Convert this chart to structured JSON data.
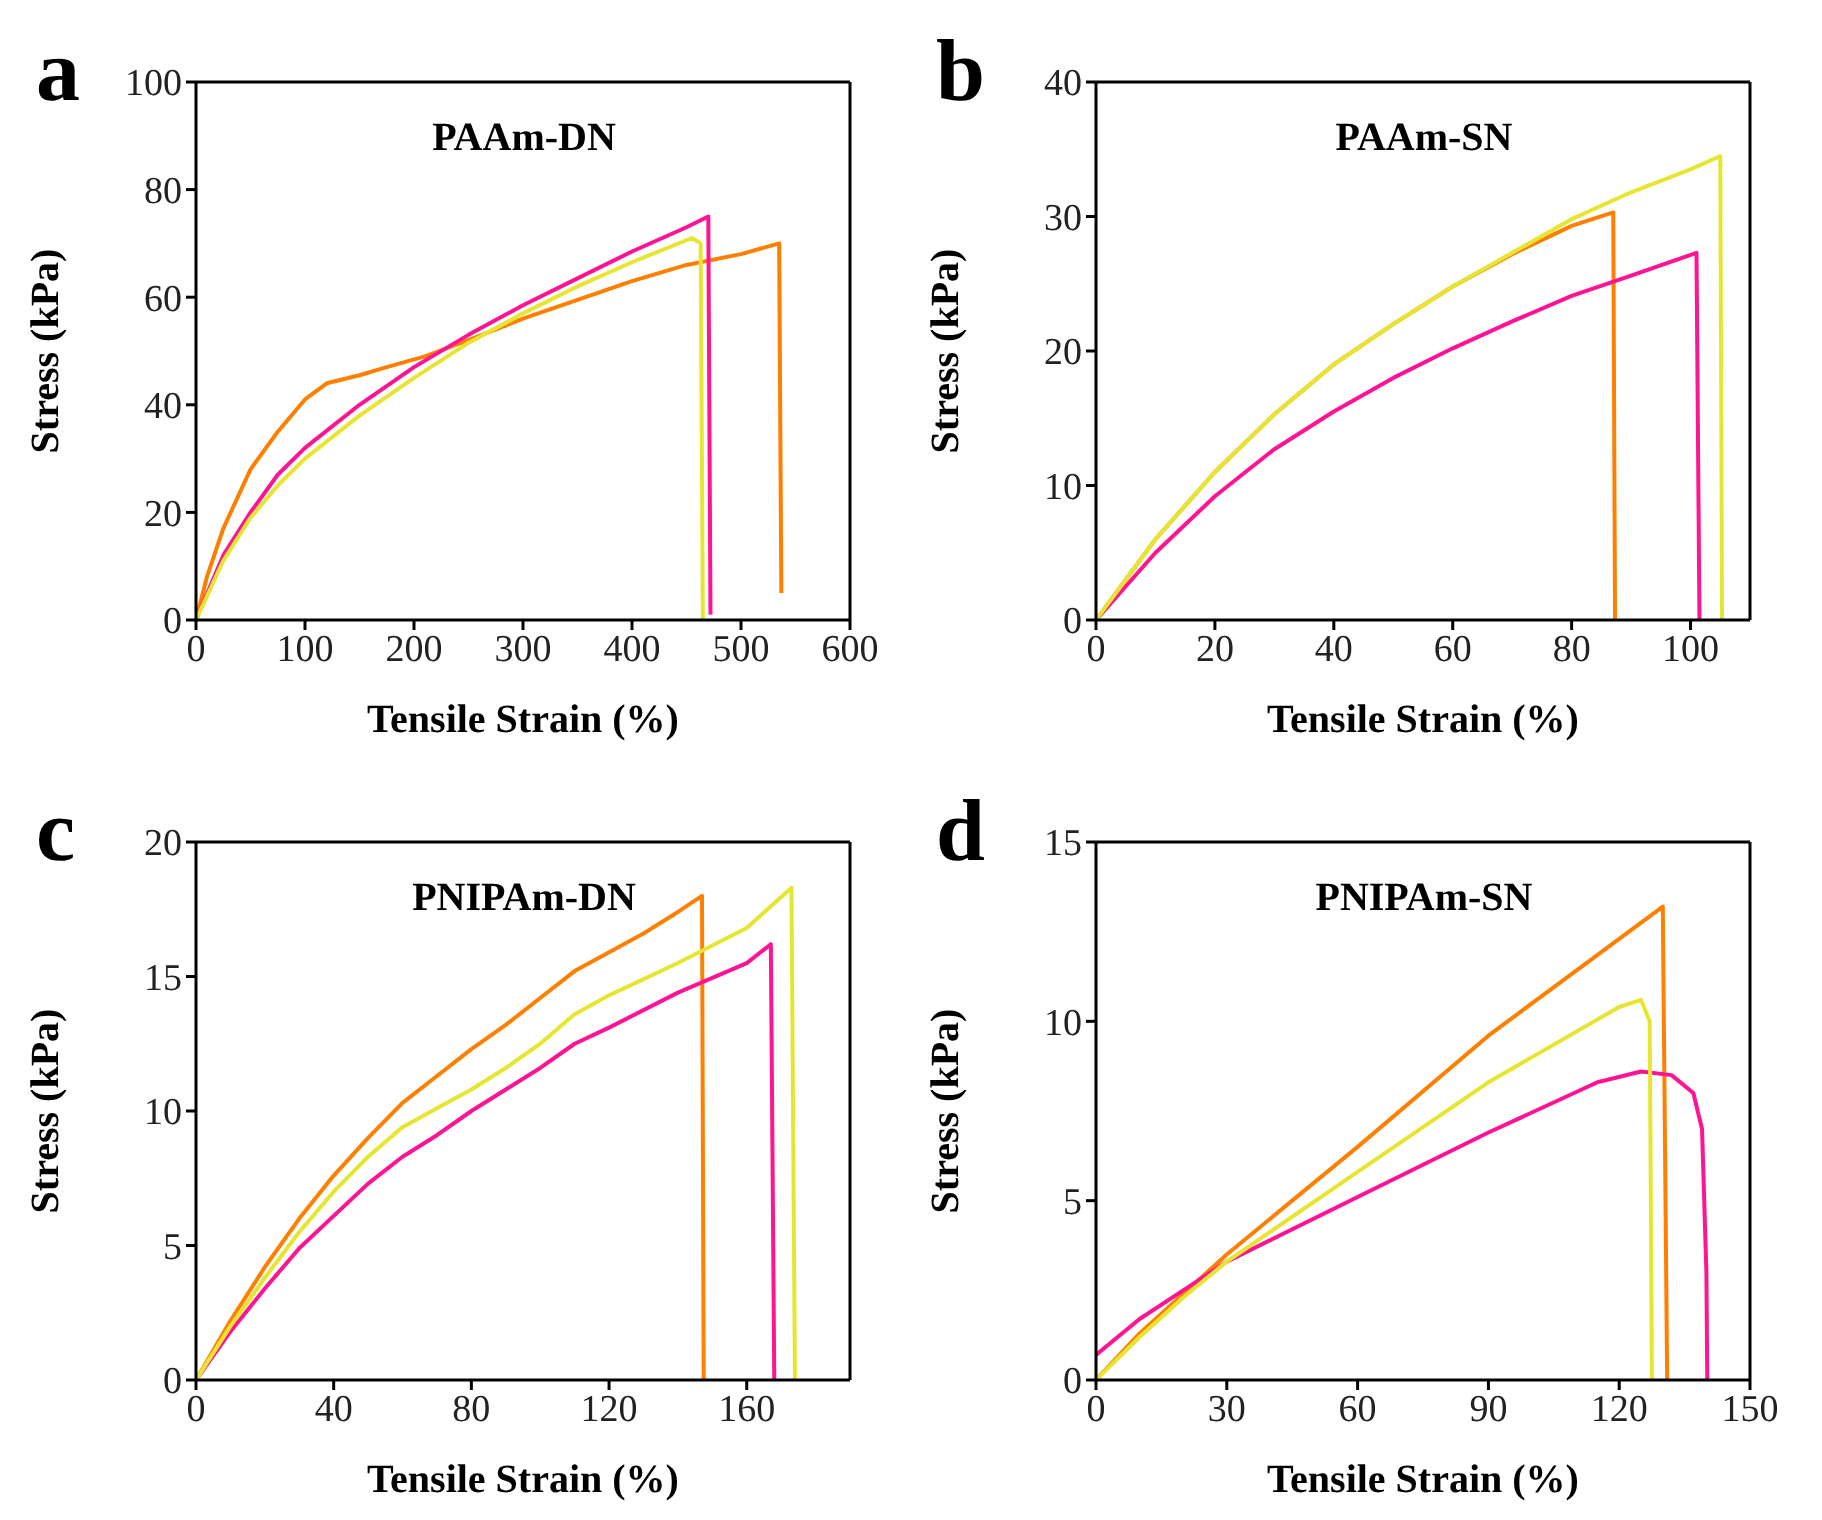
{
  "chart_data": [
    {
      "type": "line",
      "title": "PAAm-DN",
      "xlabel": "Tensile Strain (%)",
      "ylabel": "Stress (kPa)",
      "annotations": [
        "a"
      ],
      "xlim": [
        0,
        600
      ],
      "xticks": [
        0,
        100,
        200,
        300,
        400,
        500,
        600
      ],
      "ylim": [
        0,
        100
      ],
      "yticks": [
        0,
        20,
        40,
        60,
        80,
        100
      ],
      "grid": false,
      "legend": false,
      "marker": "none",
      "line_style": "solid",
      "series": [
        {
          "color": "#ff8000",
          "x": [
            0,
            10,
            25,
            50,
            75,
            100,
            120,
            150,
            175,
            210,
            250,
            300,
            350,
            400,
            450,
            500,
            535,
            537
          ],
          "values": [
            0,
            8,
            17,
            28,
            35,
            41,
            44,
            45.5,
            47,
            49,
            52,
            56,
            59.5,
            63,
            66,
            68,
            70,
            5
          ]
        },
        {
          "color": "#ff1493",
          "x": [
            0,
            25,
            50,
            75,
            100,
            150,
            200,
            250,
            300,
            350,
            400,
            450,
            470,
            472
          ],
          "values": [
            0,
            12,
            20,
            27,
            32,
            40,
            47,
            53,
            58.5,
            63.5,
            68.5,
            73,
            75,
            1
          ]
        },
        {
          "color": "#e6e632",
          "x": [
            0,
            25,
            50,
            75,
            100,
            150,
            200,
            250,
            300,
            350,
            400,
            455,
            463,
            465
          ],
          "values": [
            0,
            11,
            19,
            25,
            30,
            38,
            45,
            51.5,
            57,
            62,
            66.5,
            71,
            70,
            0
          ]
        }
      ]
    },
    {
      "type": "line",
      "title": "PAAm-SN",
      "xlabel": "Tensile Strain (%)",
      "ylabel": "Stress (kPa)",
      "annotations": [
        "b"
      ],
      "xlim": [
        0,
        110
      ],
      "xticks": [
        0,
        20,
        40,
        60,
        80,
        100
      ],
      "ylim": [
        0,
        40
      ],
      "yticks": [
        0,
        10,
        20,
        30,
        40
      ],
      "grid": false,
      "legend": false,
      "marker": "none",
      "line_style": "solid",
      "series": [
        {
          "color": "#ff8000",
          "x": [
            0,
            10,
            20,
            30,
            40,
            50,
            60,
            70,
            80,
            87,
            87.3
          ],
          "values": [
            0,
            6,
            11,
            15.3,
            19,
            22,
            24.8,
            27.2,
            29.3,
            30.3,
            0
          ]
        },
        {
          "color": "#ff1493",
          "x": [
            0,
            10,
            20,
            30,
            40,
            50,
            60,
            70,
            80,
            90,
            101,
            101.5
          ],
          "values": [
            0,
            5,
            9.2,
            12.7,
            15.5,
            18,
            20.2,
            22.2,
            24.1,
            25.6,
            27.3,
            0
          ]
        },
        {
          "color": "#e6e632",
          "x": [
            0,
            10,
            20,
            30,
            40,
            50,
            60,
            70,
            80,
            90,
            100,
            105,
            105.3
          ],
          "values": [
            0,
            6,
            11,
            15.3,
            19,
            22,
            24.8,
            27.3,
            29.8,
            31.8,
            33.5,
            34.5,
            0
          ]
        }
      ]
    },
    {
      "type": "line",
      "title": "PNIPAm-DN",
      "xlabel": "Tensile Strain (%)",
      "ylabel": "Stress (kPa)",
      "annotations": [
        "c"
      ],
      "xlim": [
        0,
        190
      ],
      "xticks": [
        0,
        40,
        80,
        120,
        160
      ],
      "ylim": [
        0,
        20
      ],
      "yticks": [
        0,
        5,
        10,
        15,
        20
      ],
      "grid": false,
      "legend": false,
      "marker": "none",
      "line_style": "solid",
      "series": [
        {
          "color": "#ff8000",
          "x": [
            0,
            10,
            20,
            30,
            40,
            50,
            60,
            70,
            80,
            90,
            100,
            110,
            120,
            130,
            140,
            147,
            147.5
          ],
          "values": [
            0,
            2.2,
            4.2,
            6,
            7.6,
            9,
            10.3,
            11.3,
            12.3,
            13.2,
            14.2,
            15.2,
            15.9,
            16.6,
            17.4,
            18,
            0
          ]
        },
        {
          "color": "#ff1493",
          "x": [
            0,
            10,
            20,
            30,
            40,
            50,
            60,
            70,
            80,
            90,
            100,
            110,
            120,
            140,
            160,
            167,
            168
          ],
          "values": [
            0,
            1.8,
            3.4,
            4.9,
            6.1,
            7.3,
            8.3,
            9.1,
            10,
            10.8,
            11.6,
            12.5,
            13.1,
            14.4,
            15.5,
            16.2,
            0
          ]
        },
        {
          "color": "#e6e632",
          "x": [
            0,
            10,
            20,
            30,
            40,
            50,
            60,
            70,
            80,
            90,
            100,
            110,
            120,
            140,
            160,
            173,
            174
          ],
          "values": [
            0,
            2,
            3.8,
            5.5,
            7,
            8.3,
            9.4,
            10.1,
            10.8,
            11.6,
            12.5,
            13.6,
            14.3,
            15.5,
            16.8,
            18.3,
            0
          ]
        }
      ]
    },
    {
      "type": "line",
      "title": "PNIPAm-SN",
      "xlabel": "Tensile Strain (%)",
      "ylabel": "Stress (kPa)",
      "annotations": [
        "d"
      ],
      "xlim": [
        0,
        150
      ],
      "xticks": [
        0,
        30,
        60,
        90,
        120,
        150
      ],
      "ylim": [
        0,
        15
      ],
      "yticks": [
        0,
        5,
        10,
        15
      ],
      "grid": false,
      "legend": false,
      "marker": "none",
      "line_style": "solid",
      "series": [
        {
          "color": "#ff8000",
          "x": [
            0,
            10,
            20,
            30,
            60,
            90,
            120,
            130,
            131
          ],
          "values": [
            0,
            1.3,
            2.4,
            3.5,
            6.5,
            9.6,
            12.3,
            13.2,
            0
          ]
        },
        {
          "color": "#ff1493",
          "x": [
            0,
            10,
            20,
            30,
            60,
            90,
            115,
            125,
            132,
            137,
            139,
            140,
            140.2
          ],
          "values": [
            0.7,
            1.7,
            2.5,
            3.3,
            5.1,
            6.9,
            8.3,
            8.6,
            8.5,
            8,
            7,
            3,
            0
          ]
        },
        {
          "color": "#e6e632",
          "x": [
            0,
            10,
            20,
            30,
            60,
            90,
            120,
            125,
            127,
            127.5
          ],
          "values": [
            0,
            1.2,
            2.3,
            3.3,
            5.8,
            8.3,
            10.4,
            10.6,
            10,
            0
          ]
        }
      ]
    }
  ]
}
